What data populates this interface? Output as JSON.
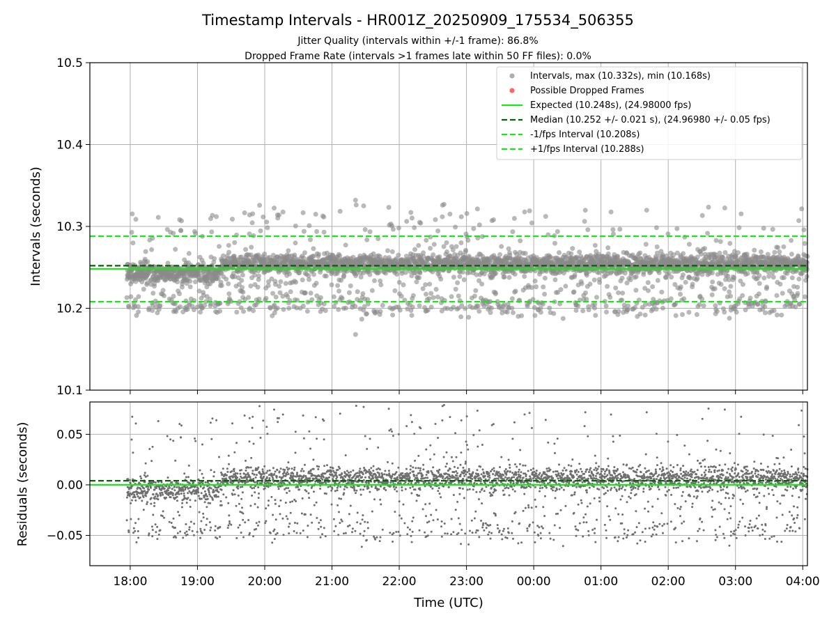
{
  "chart_data": [
    {
      "type": "scatter",
      "title": "Timestamp Intervals - HR001Z_20250909_175534_506355",
      "subtitle_lines": [
        "Jitter Quality (intervals within +/-1 frame): 86.8%",
        "Dropped Frame Rate (intervals >1 frames late within 50 FF files): 0.0%"
      ],
      "xlabel": "",
      "ylabel": "Intervals (seconds)",
      "ylim": [
        10.1,
        10.5
      ],
      "yticks": [
        "10.1",
        "10.2",
        "10.3",
        "10.4",
        "10.5"
      ],
      "yticks_values": [
        10.1,
        10.2,
        10.3,
        10.4,
        10.5
      ],
      "xlim_hours": [
        17.4,
        28.07
      ],
      "xticks_hours": [
        18,
        19,
        20,
        21,
        22,
        23,
        24,
        25,
        26,
        27,
        28
      ],
      "grid": true,
      "legend_position": "top-right",
      "legend": [
        "Intervals, max (10.332s), min (10.168s)",
        "Possible Dropped Frames",
        "Expected (10.248s), (24.98000 fps)",
        "Median (10.252 +/- 0.021 s), (24.96980 +/- 0.05 fps)",
        "-1/fps Interval (10.208s)",
        "+1/fps Interval (10.288s)"
      ],
      "reference_lines": {
        "expected": 10.248,
        "median": 10.252,
        "minus_one_fps": 10.208,
        "plus_one_fps": 10.288
      },
      "series": [
        {
          "name": "Intervals, max (10.332s), min (10.168s)",
          "x_start_hours": 17.95,
          "x_end_hours": 28.07,
          "approx_count": 3550,
          "max": 10.332,
          "min": 10.168,
          "center": 10.254,
          "spread": 0.006,
          "early_segment_end_hours": 19.35,
          "early_center": 10.243
        },
        {
          "name": "Possible Dropped Frames",
          "values": []
        }
      ]
    },
    {
      "type": "scatter",
      "xlabel": "Time (UTC)",
      "ylabel": "Residuals (seconds)",
      "ylim": [
        -0.08,
        0.082
      ],
      "yticks": [
        "−0.05",
        "0.00",
        "0.05"
      ],
      "yticks_values": [
        -0.05,
        0.0,
        0.05
      ],
      "xlim_hours": [
        17.4,
        28.07
      ],
      "xticks": [
        "18:00",
        "19:00",
        "20:00",
        "21:00",
        "22:00",
        "23:00",
        "00:00",
        "01:00",
        "02:00",
        "03:00",
        "04:00"
      ],
      "xticks_hours": [
        18,
        19,
        20,
        21,
        22,
        23,
        24,
        25,
        26,
        27,
        28
      ],
      "grid": true,
      "reference_lines": {
        "zero": 0.0,
        "median_offset": 0.004
      },
      "series": [
        {
          "name": "",
          "derived_from": "intervals minus expected (10.248s)",
          "min": -0.08,
          "max": 0.084
        }
      ]
    }
  ],
  "colors": {
    "points": "#8a8a8a",
    "residual_points": "#6e6e6e",
    "dropped": "#ff6666",
    "expected": "#19e619",
    "median": "#006400",
    "fps_bounds": "#19e619",
    "grid": "#b0b0b0"
  }
}
